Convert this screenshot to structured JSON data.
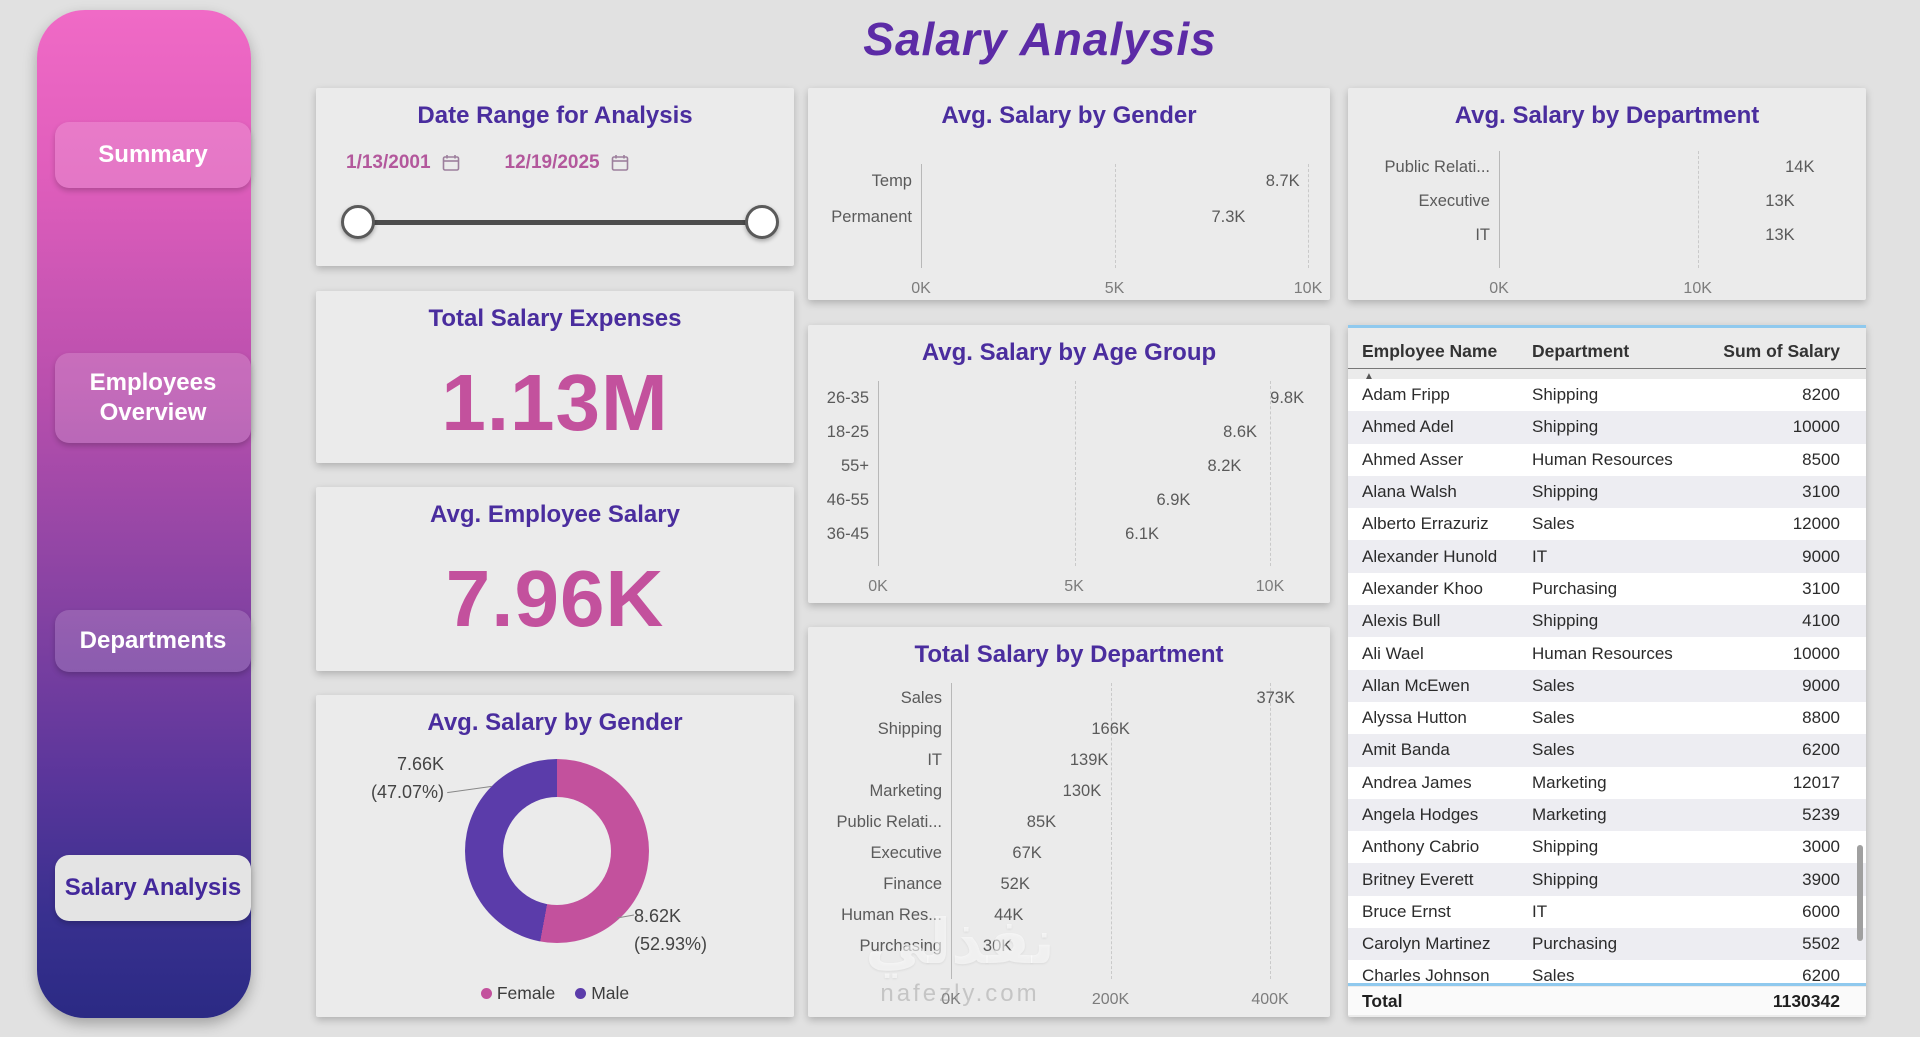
{
  "page": {
    "title": "Salary Analysis"
  },
  "colors": {
    "accent_pink": "#c3519d",
    "accent_purple": "#5b3caa",
    "card_title_purple": "#4a2d9e",
    "main_title_purple": "#5c2ba6",
    "sidebar_gradient_top": "#f06ac6",
    "sidebar_gradient_bottom": "#2b2a84",
    "selection_blue": "#8fc9ee"
  },
  "sidebar": {
    "items": [
      {
        "label": "Summary",
        "active": false
      },
      {
        "label": "Employees Overview",
        "active": false
      },
      {
        "label": "Departments",
        "active": false
      },
      {
        "label": "Salary Analysis",
        "active": true
      }
    ]
  },
  "date_slicer": {
    "title": "Date Range for Analysis",
    "start_date": "1/13/2001",
    "end_date": "12/19/2025",
    "calendar_icon": "calendar-icon"
  },
  "kpis": [
    {
      "title": "Total Salary Expenses",
      "value": "1.13M"
    },
    {
      "title": "Avg. Employee Salary",
      "value": "7.96K"
    }
  ],
  "chart_data": [
    {
      "id": "avg-salary-by-gender-bar",
      "type": "bar",
      "title": "Avg. Salary by Gender",
      "orientation": "horizontal",
      "categories": [
        "Temp",
        "Permanent"
      ],
      "values": [
        8.7,
        7.3
      ],
      "value_labels": [
        "8.7K",
        "7.3K"
      ],
      "xlim": [
        0,
        10
      ],
      "ticks": [
        {
          "value": 0,
          "label": "0K"
        },
        {
          "value": 5,
          "label": "5K"
        },
        {
          "value": 10,
          "label": "10K"
        }
      ],
      "bar_color": "#c3519d"
    },
    {
      "id": "avg-salary-by-department-bar",
      "type": "bar",
      "title": "Avg. Salary by Department",
      "orientation": "horizontal",
      "categories": [
        "Public Relati...",
        "Executive",
        "IT"
      ],
      "values": [
        14,
        13,
        13
      ],
      "value_labels": [
        "14K",
        "13K",
        "13K"
      ],
      "xlim": [
        0,
        15
      ],
      "ticks": [
        {
          "value": 0,
          "label": "0K"
        },
        {
          "value": 10,
          "label": "10K"
        }
      ],
      "bar_color": "#c3519d"
    },
    {
      "id": "avg-salary-by-age-group-bar",
      "type": "bar",
      "title": "Avg. Salary by Age Group",
      "orientation": "horizontal",
      "categories": [
        "26-35",
        "18-25",
        "55+",
        "46-55",
        "36-45"
      ],
      "values": [
        9.8,
        8.6,
        8.2,
        6.9,
        6.1
      ],
      "value_labels": [
        "9.8K",
        "8.6K",
        "8.2K",
        "6.9K",
        "6.1K"
      ],
      "xlim": [
        0,
        10
      ],
      "ticks": [
        {
          "value": 0,
          "label": "0K"
        },
        {
          "value": 5,
          "label": "5K"
        },
        {
          "value": 10,
          "label": "10K"
        }
      ],
      "bar_color": "#c3519d"
    },
    {
      "id": "total-salary-by-department-bar",
      "type": "bar",
      "title": "Total Salary by Department",
      "orientation": "horizontal",
      "categories": [
        "Sales",
        "Shipping",
        "IT",
        "Marketing",
        "Public Relati...",
        "Executive",
        "Finance",
        "Human Res...",
        "Purchasing"
      ],
      "values": [
        373,
        166,
        139,
        130,
        85,
        67,
        52,
        44,
        30
      ],
      "value_labels": [
        "373K",
        "166K",
        "139K",
        "130K",
        "85K",
        "67K",
        "52K",
        "44K",
        "30K"
      ],
      "xlim": [
        0,
        400
      ],
      "ticks": [
        {
          "value": 0,
          "label": "0K"
        },
        {
          "value": 200,
          "label": "200K"
        },
        {
          "value": 400,
          "label": "400K"
        }
      ],
      "bar_color": "#5b3caa"
    },
    {
      "id": "avg-salary-by-gender-donut",
      "type": "donut",
      "title": "Avg. Salary by Gender",
      "slices": [
        {
          "label": "Female",
          "value_label": "8.62K",
          "pct": 52.93,
          "color": "#c3519d"
        },
        {
          "label": "Male",
          "value_label": "7.66K",
          "pct": 47.07,
          "color": "#5b3caa"
        }
      ],
      "callouts": [
        {
          "value": "7.66K",
          "pct": "(47.07%)",
          "position": "top-left"
        },
        {
          "value": "8.62K",
          "pct": "(52.93%)",
          "position": "bottom-right"
        }
      ]
    }
  ],
  "table": {
    "columns": [
      "Employee Name",
      "Department",
      "Sum of Salary"
    ],
    "sort_icon": "▲",
    "rows": [
      [
        "Adam Fripp",
        "Shipping",
        "8200"
      ],
      [
        "Ahmed Adel",
        "Shipping",
        "10000"
      ],
      [
        "Ahmed Asser",
        "Human Resources",
        "8500"
      ],
      [
        "Alana Walsh",
        "Shipping",
        "3100"
      ],
      [
        "Alberto Errazuriz",
        "Sales",
        "12000"
      ],
      [
        "Alexander Hunold",
        "IT",
        "9000"
      ],
      [
        "Alexander Khoo",
        "Purchasing",
        "3100"
      ],
      [
        "Alexis Bull",
        "Shipping",
        "4100"
      ],
      [
        "Ali Wael",
        "Human Resources",
        "10000"
      ],
      [
        "Allan McEwen",
        "Sales",
        "9000"
      ],
      [
        "Alyssa Hutton",
        "Sales",
        "8800"
      ],
      [
        "Amit Banda",
        "Sales",
        "6200"
      ],
      [
        "Andrea James",
        "Marketing",
        "12017"
      ],
      [
        "Angela Hodges",
        "Marketing",
        "5239"
      ],
      [
        "Anthony Cabrio",
        "Shipping",
        "3000"
      ],
      [
        "Britney Everett",
        "Shipping",
        "3900"
      ],
      [
        "Bruce Ernst",
        "IT",
        "6000"
      ],
      [
        "Carolyn Martinez",
        "Purchasing",
        "5502"
      ],
      [
        "Charles Johnson",
        "Sales",
        "6200"
      ]
    ],
    "total_label": "Total",
    "total_value": "1130342"
  },
  "watermark": {
    "text": "نفذلي",
    "subtext": "nafezly.com"
  }
}
